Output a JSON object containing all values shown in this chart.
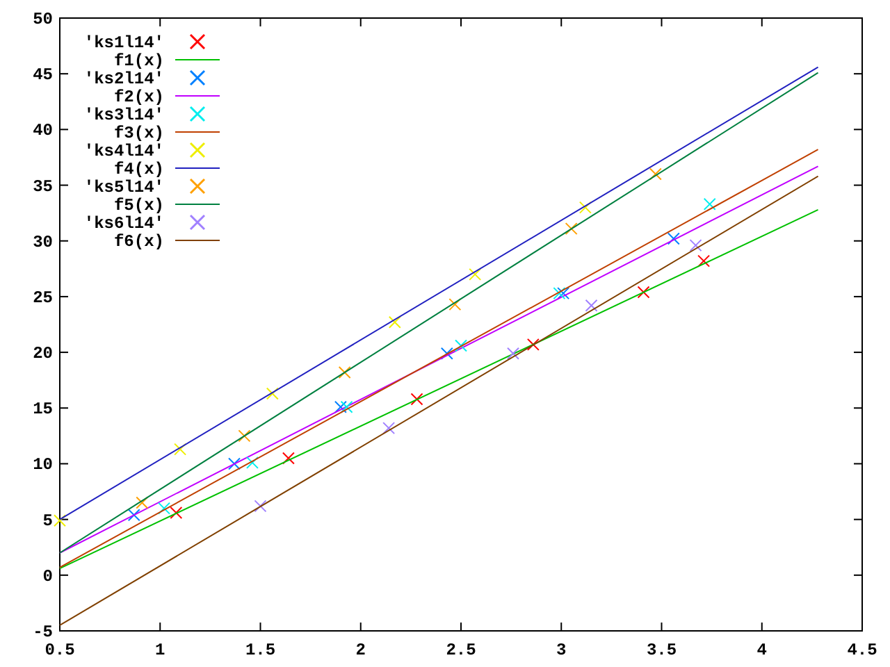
{
  "chart_data": {
    "type": "scatter",
    "xlim": [
      0.5,
      4.5
    ],
    "ylim": [
      -5,
      50
    ],
    "xticks": [
      0.5,
      1,
      1.5,
      2,
      2.5,
      3,
      3.5,
      4,
      4.5
    ],
    "yticks": [
      -5,
      0,
      5,
      10,
      15,
      20,
      25,
      30,
      35,
      40,
      45,
      50
    ],
    "grid": false,
    "legend": "top left",
    "series": [
      {
        "name": "'ks1l14'",
        "marker": "cross",
        "color": "#ff0000",
        "x": [
          1.08,
          1.64,
          2.28,
          2.86,
          3.41,
          3.71
        ],
        "values": [
          5.6,
          10.5,
          15.8,
          20.7,
          25.4,
          28.2
        ]
      },
      {
        "name": "f1(x)",
        "type": "line",
        "color": "#00c000",
        "x": [
          0.5,
          4.28
        ],
        "values": [
          0.6,
          32.8
        ]
      },
      {
        "name": "'ks2l14'",
        "marker": "cross",
        "color": "#0080ff",
        "x": [
          0.87,
          1.37,
          1.9,
          2.43,
          3.01,
          3.56
        ],
        "values": [
          5.4,
          10,
          15.1,
          19.9,
          25.3,
          30.2
        ]
      },
      {
        "name": "f2(x)",
        "type": "line",
        "color": "#c000ff",
        "x": [
          0.5,
          4.28
        ],
        "values": [
          2,
          36.7
        ]
      },
      {
        "name": "'ks3l14'",
        "marker": "cross",
        "color": "#00eeee",
        "x": [
          1.02,
          1.46,
          1.93,
          2.5,
          2.99,
          3.74
        ],
        "values": [
          6,
          10.1,
          15.1,
          20.6,
          25.3,
          33.3
        ]
      },
      {
        "name": "f3(x)",
        "type": "line",
        "color": "#c04000",
        "x": [
          0.5,
          4.28
        ],
        "values": [
          0.7,
          38.2
        ]
      },
      {
        "name": "'ks4l14'",
        "marker": "cross",
        "color": "#eeee00",
        "x": [
          0.5,
          1.1,
          1.56,
          2.17,
          2.57,
          3.12
        ],
        "values": [
          4.9,
          11.3,
          16.3,
          22.7,
          27,
          33
        ]
      },
      {
        "name": "f4(x)",
        "type": "line",
        "color": "#2020c0",
        "x": [
          0.5,
          4.28
        ],
        "values": [
          5,
          45.6
        ]
      },
      {
        "name": "'ks5l14'",
        "marker": "cross",
        "color": "#ffa000",
        "x": [
          0.91,
          1.42,
          1.92,
          2.47,
          3.05,
          3.47
        ],
        "values": [
          6.5,
          12.5,
          18.2,
          24.3,
          31.1,
          36
        ]
      },
      {
        "name": "f5(x)",
        "type": "line",
        "color": "#008040",
        "x": [
          0.5,
          4.28
        ],
        "values": [
          2,
          45.1
        ]
      },
      {
        "name": "'ks6l14'",
        "marker": "cross",
        "color": "#a080ff",
        "x": [
          1.5,
          2.14,
          2.76,
          3.15,
          3.67
        ],
        "values": [
          6.2,
          13.2,
          19.9,
          24.2,
          29.6
        ]
      },
      {
        "name": "f6(x)",
        "type": "line",
        "color": "#804000",
        "x": [
          0.5,
          4.28
        ],
        "values": [
          -4.5,
          35.8
        ]
      }
    ]
  }
}
